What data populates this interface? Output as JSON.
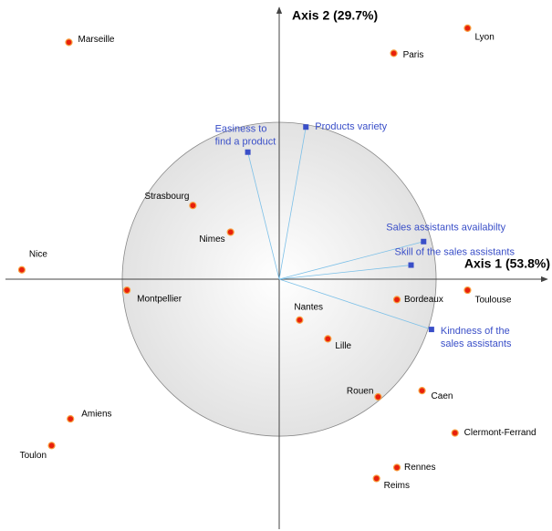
{
  "chart_data": {
    "type": "biplot",
    "x_label": "Axis 1 (53.8%)",
    "y_label": "Axis 2 (29.7%)",
    "xlim": [
      -1.744,
      1.709
    ],
    "ylim": [
      -1.593,
      1.733
    ],
    "observations": {
      "names": [
        "Marseille",
        "Lyon",
        "Paris",
        "Strasbourg",
        "Nimes",
        "Nice",
        "Montpellier",
        "Bordeaux",
        "Toulouse",
        "Nantes",
        "Lille",
        "Rouen",
        "Caen",
        "Clermont-Ferrand",
        "Amiens",
        "Toulon",
        "Rennes",
        "Reims"
      ],
      "x": [
        -1.34,
        1.2,
        0.73,
        -0.55,
        -0.31,
        -1.64,
        -0.97,
        0.75,
        1.2,
        0.13,
        0.31,
        0.63,
        0.91,
        1.12,
        -1.33,
        -1.45,
        0.75,
        0.62
      ],
      "y": [
        1.51,
        1.6,
        1.44,
        0.47,
        0.3,
        0.06,
        -0.07,
        -0.13,
        -0.07,
        -0.26,
        -0.38,
        -0.75,
        -0.71,
        -0.98,
        -0.89,
        -1.06,
        -1.2,
        -1.27
      ],
      "color": "#e8200c"
    },
    "variables": {
      "names": [
        [
          "Easiness to",
          "find a product"
        ],
        [
          "Products variety"
        ],
        [
          "Sales assistants availabilty"
        ],
        [
          "Skill of the sales assistants"
        ],
        [
          "Kindness of the",
          "sales assistants"
        ]
      ],
      "x": [
        -0.2,
        0.17,
        0.92,
        0.84,
        0.97
      ],
      "y": [
        0.81,
        0.97,
        0.24,
        0.09,
        -0.32
      ],
      "color": "#3a4fc8"
    }
  }
}
